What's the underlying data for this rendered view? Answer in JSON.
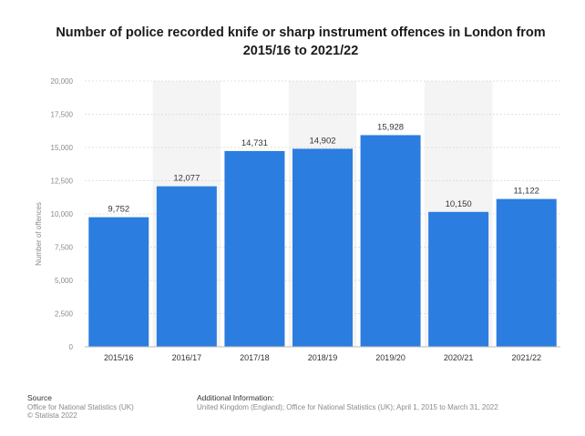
{
  "title_line1": "Number of police recorded knife or sharp instrument offences in London from",
  "title_line2": "2015/16 to 2021/22",
  "bar_color": "#2b7de0",
  "band_color": "#f4f4f4",
  "footer": {
    "source_heading": "Source",
    "source_line1": "Office for National Statistics (UK)",
    "source_line2": "© Statista 2022",
    "info_heading": "Additional Information:",
    "info_text": "United Kingdom (England); Office for National Statistics (UK); April 1, 2015 to March 31, 2022"
  },
  "chart_data": {
    "type": "bar",
    "title": "Number of police recorded knife or sharp instrument offences in London from 2015/16 to 2021/22",
    "xlabel": "",
    "ylabel": "Number of offences",
    "categories": [
      "2015/16",
      "2016/17",
      "2017/18",
      "2018/19",
      "2019/20",
      "2020/21",
      "2021/22"
    ],
    "values": [
      9752,
      12077,
      14731,
      14902,
      15928,
      10150,
      11122
    ],
    "value_labels": [
      "9,752",
      "12,077",
      "14,731",
      "14,902",
      "15,928",
      "10,150",
      "11,122"
    ],
    "ylim": [
      0,
      20000
    ],
    "yticks": [
      0,
      2500,
      5000,
      7500,
      10000,
      12500,
      15000,
      17500,
      20000
    ],
    "ytick_labels": [
      "0",
      "2,500",
      "5,000",
      "7,500",
      "10,000",
      "12,500",
      "15,000",
      "17,500",
      "20,000"
    ],
    "grid": true,
    "legend": "none"
  }
}
